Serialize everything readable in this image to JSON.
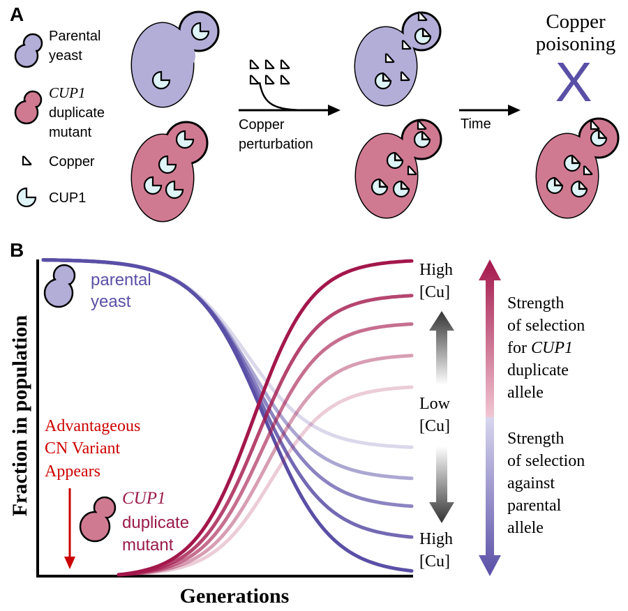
{
  "colors": {
    "parental_fill": "#b3aed8",
    "mutant_fill": "#d07a92",
    "cup1_fill": "#dff4f7",
    "parental_curve": "#5a4fa6",
    "mutant_curve": "#a3174b",
    "advantage_red": "#cc0000",
    "mutant_label": "#9a1a4a"
  },
  "panel_a": {
    "label": "A",
    "legend": {
      "parental_line1": "Parental",
      "parental_line2": "yeast",
      "mutant_line1": "CUP1",
      "mutant_line2": "duplicate",
      "mutant_line3": "mutant",
      "copper": "Copper",
      "cup1": "CUP1"
    },
    "arrow1_line1": "Copper",
    "arrow1_line2": "perturbation",
    "arrow2": "Time",
    "poisoning_line1": "Copper",
    "poisoning_line2": "poisoning",
    "x_mark": "X",
    "icons": [
      "copper-icon",
      "cup1-icon",
      "yeast-icon"
    ]
  },
  "panel_b": {
    "label": "B",
    "ylabel": "Fraction in population",
    "xlabel": "Generations",
    "parental_line1": "parental",
    "parental_line2": "yeast",
    "mutant_line1": "CUP1",
    "mutant_line2": "duplicate",
    "mutant_line3": "mutant",
    "advantage_line1": "Advantageous",
    "advantage_line2": "CN Variant",
    "advantage_line3": "Appears",
    "high_top_1": "High",
    "high_top_2": "[Cu]",
    "low_1": "Low",
    "low_2": "[Cu]",
    "high_bottom_1": "High",
    "high_bottom_2": "[Cu]",
    "sel_for_1": "Strength",
    "sel_for_2": "of selection",
    "sel_for_3": "for",
    "sel_for_4": "CUP1",
    "sel_for_5": "duplicate",
    "sel_for_6": "allele",
    "sel_against_1": "Strength",
    "sel_against_2": "of selection",
    "sel_against_3": "against",
    "sel_against_4": "parental",
    "sel_against_5": "allele"
  },
  "chart_data": {
    "type": "line",
    "xlabel": "Generations",
    "ylabel": "Fraction in population",
    "series_groups": [
      {
        "group": "parental yeast",
        "color": "#5a4fa6",
        "curves": [
          {
            "final_value": 0.0,
            "opacity": 1.0
          },
          {
            "final_value": 0.11,
            "opacity": 0.85
          },
          {
            "final_value": 0.21,
            "opacity": 0.7
          },
          {
            "final_value": 0.3,
            "opacity": 0.5
          },
          {
            "final_value": 0.4,
            "opacity": 0.22
          }
        ]
      },
      {
        "group": "CUP1 duplicate mutant",
        "color": "#a3174b",
        "curves": [
          {
            "final_value": 1.0,
            "opacity": 1.0
          },
          {
            "final_value": 0.89,
            "opacity": 0.8
          },
          {
            "final_value": 0.8,
            "opacity": 0.62
          },
          {
            "final_value": 0.7,
            "opacity": 0.42
          },
          {
            "final_value": 0.6,
            "opacity": 0.22
          }
        ]
      }
    ]
  }
}
